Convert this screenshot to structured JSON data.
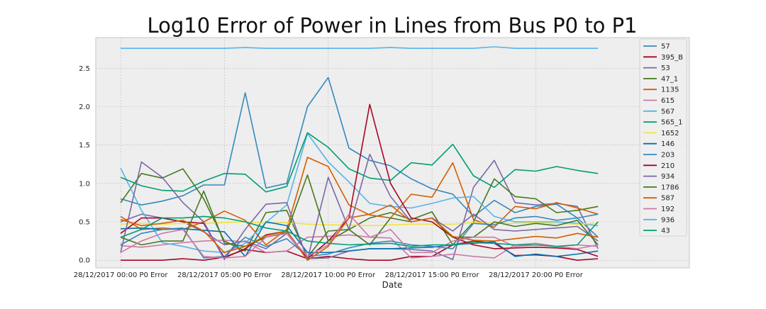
{
  "chart_data": {
    "type": "line",
    "title": "Log10 Error of Power in Lines from Bus P0 to P1",
    "xlabel": "Date",
    "ylabel": "",
    "ylim": [
      -0.1,
      2.9
    ],
    "yticks": [
      0.0,
      0.5,
      1.0,
      1.5,
      2.0,
      2.5
    ],
    "ytick_labels": [
      "0.0",
      "0.5",
      "1.0",
      "1.5",
      "2.0",
      "2.5"
    ],
    "xticks": [
      0,
      5,
      10,
      15,
      20
    ],
    "xtick_labels": [
      "28/12/2017 00:00 P0 Error",
      "28/12/2017 05:00 P0 Error",
      "28/12/2017 10:00 P0 Error",
      "28/12/2017 15:00 P0 Error",
      "28/12/2017 20:00 P0 Error"
    ],
    "x": [
      0,
      1,
      2,
      3,
      4,
      5,
      6,
      7,
      8,
      9,
      10,
      11,
      12,
      13,
      14,
      15,
      16,
      17,
      18,
      19,
      20,
      21,
      22,
      23
    ],
    "grid": true,
    "legend_position": "right",
    "background_color": "#eeeeee",
    "series": [
      {
        "name": "57",
        "color": "#348abd",
        "values": [
          0.8,
          0.72,
          0.77,
          0.84,
          0.98,
          0.98,
          2.18,
          0.94,
          1.0,
          2.0,
          2.38,
          1.46,
          1.3,
          1.23,
          1.06,
          0.93,
          0.86,
          0.57,
          0.78,
          0.62,
          0.7,
          0.73,
          0.55,
          0.3
        ]
      },
      {
        "name": "395_B",
        "color": "#a60628",
        "values": [
          0.0,
          0.0,
          0.0,
          0.02,
          0.0,
          0.04,
          0.14,
          0.1,
          0.12,
          0.02,
          0.05,
          0.02,
          0.0,
          0.0,
          0.05,
          0.05,
          0.2,
          0.25,
          0.22,
          0.06,
          0.07,
          0.05,
          0.0,
          0.02
        ]
      },
      {
        "name": "53",
        "color": "#7a68a6",
        "values": [
          0.5,
          0.6,
          0.55,
          0.5,
          0.37,
          0.2,
          0.25,
          0.15,
          0.35,
          0.02,
          0.03,
          0.12,
          0.15,
          0.15,
          0.14,
          0.12,
          0.01,
          0.95,
          1.3,
          0.75,
          0.72,
          0.74,
          0.7,
          0.15
        ]
      },
      {
        "name": "47_1",
        "color": "#467821",
        "values": [
          0.75,
          1.13,
          1.07,
          1.19,
          0.8,
          0.25,
          0.12,
          0.62,
          0.65,
          0.04,
          0.38,
          0.4,
          0.55,
          0.62,
          0.53,
          0.63,
          0.2,
          0.5,
          1.06,
          0.83,
          0.8,
          0.62,
          0.65,
          0.7
        ]
      },
      {
        "name": "1135",
        "color": "#d55e00",
        "values": [
          0.57,
          0.4,
          0.42,
          0.4,
          0.5,
          0.64,
          0.52,
          0.2,
          0.4,
          1.34,
          1.22,
          0.72,
          0.59,
          0.55,
          0.86,
          0.82,
          1.27,
          0.53,
          0.43,
          0.7,
          0.67,
          0.75,
          0.68,
          0.6
        ]
      },
      {
        "name": "615",
        "color": "#cc79a7",
        "values": [
          0.19,
          0.17,
          0.2,
          0.23,
          0.25,
          0.26,
          0.24,
          0.1,
          0.12,
          0.3,
          0.31,
          0.33,
          0.3,
          0.29,
          0.03,
          0.05,
          0.08,
          0.05,
          0.03,
          0.2,
          0.22,
          0.18,
          0.2,
          0.18
        ]
      },
      {
        "name": "567",
        "color": "#56b4e9",
        "values": [
          1.2,
          0.65,
          0.23,
          0.18,
          0.12,
          0.1,
          0.22,
          0.49,
          0.72,
          1.65,
          1.28,
          1.02,
          0.74,
          0.7,
          0.68,
          0.74,
          0.81,
          0.83,
          0.57,
          0.5,
          0.5,
          0.5,
          0.48,
          0.45
        ]
      },
      {
        "name": "565_1",
        "color": "#009e73",
        "values": [
          1.08,
          0.97,
          0.91,
          0.9,
          1.03,
          1.13,
          1.12,
          0.89,
          0.96,
          1.66,
          1.47,
          1.19,
          1.07,
          1.04,
          1.27,
          1.24,
          1.51,
          1.1,
          0.95,
          1.18,
          1.16,
          1.22,
          1.17,
          1.13
        ]
      },
      {
        "name": "1652",
        "color": "#f0e442",
        "values": [
          0.47,
          0.48,
          0.47,
          0.48,
          0.48,
          0.49,
          0.5,
          0.48,
          0.49,
          0.47,
          0.46,
          0.46,
          0.45,
          0.46,
          0.47,
          0.47,
          0.47,
          0.49,
          0.48,
          0.48,
          0.49,
          0.48,
          0.47,
          0.48
        ]
      },
      {
        "name": "146",
        "color": "#0072b2",
        "values": [
          0.41,
          0.42,
          0.4,
          0.41,
          0.39,
          0.37,
          0.05,
          0.5,
          0.45,
          0.1,
          0.1,
          0.12,
          0.15,
          0.15,
          0.16,
          0.17,
          0.2,
          0.22,
          0.24,
          0.05,
          0.08,
          0.05,
          0.08,
          0.12
        ]
      },
      {
        "name": "203",
        "color": "#348abd",
        "values": [
          0.2,
          0.35,
          0.4,
          0.42,
          0.03,
          0.05,
          0.3,
          0.18,
          0.28,
          0.05,
          0.08,
          0.16,
          0.22,
          0.25,
          0.2,
          0.18,
          0.15,
          0.48,
          0.46,
          0.55,
          0.57,
          0.52,
          0.55,
          0.6
        ]
      },
      {
        "name": "210",
        "color": "#a60628",
        "values": [
          0.35,
          0.55,
          0.55,
          0.5,
          0.48,
          0.03,
          0.15,
          0.33,
          0.38,
          0.02,
          0.25,
          0.55,
          2.03,
          1.0,
          0.55,
          0.5,
          0.3,
          0.2,
          0.15,
          0.16,
          0.17,
          0.16,
          0.14,
          0.05
        ]
      },
      {
        "name": "934",
        "color": "#7a68a6",
        "values": [
          0.1,
          1.28,
          1.08,
          0.75,
          0.5,
          0.01,
          0.4,
          0.73,
          0.75,
          0.01,
          1.08,
          0.4,
          1.38,
          0.83,
          0.5,
          0.55,
          0.38,
          0.6,
          0.4,
          0.38,
          0.4,
          0.42,
          0.44,
          0.25
        ]
      },
      {
        "name": "1786",
        "color": "#467821",
        "values": [
          0.3,
          0.2,
          0.25,
          0.25,
          0.9,
          0.22,
          0.18,
          0.3,
          0.36,
          1.11,
          0.25,
          0.4,
          0.2,
          0.55,
          0.5,
          0.55,
          0.3,
          0.3,
          0.5,
          0.44,
          0.48,
          0.45,
          0.52,
          0.2
        ]
      },
      {
        "name": "587",
        "color": "#d55e00",
        "values": [
          0.53,
          0.45,
          0.48,
          0.52,
          0.38,
          0.1,
          0.18,
          0.32,
          0.38,
          0.0,
          0.18,
          0.55,
          0.6,
          0.72,
          0.5,
          0.55,
          0.31,
          0.26,
          0.25,
          0.28,
          0.31,
          0.29,
          0.35,
          0.3
        ]
      },
      {
        "name": "192",
        "color": "#cc79a7",
        "values": [
          0.1,
          0.25,
          0.35,
          0.4,
          0.05,
          0.03,
          0.05,
          0.3,
          0.35,
          0.05,
          0.2,
          0.6,
          0.3,
          0.4,
          0.1,
          0.1,
          0.25,
          0.3,
          0.3,
          0.18,
          0.2,
          0.18,
          0.15,
          0.2
        ]
      },
      {
        "name": "936",
        "color": "#56b4e9",
        "values": [
          2.76,
          2.76,
          2.76,
          2.76,
          2.76,
          2.76,
          2.77,
          2.76,
          2.76,
          2.76,
          2.76,
          2.76,
          2.76,
          2.77,
          2.76,
          2.76,
          2.76,
          2.76,
          2.78,
          2.76,
          2.76,
          2.76,
          2.76,
          2.76
        ]
      },
      {
        "name": "43",
        "color": "#009e73",
        "values": [
          0.3,
          0.4,
          0.55,
          0.55,
          0.57,
          0.55,
          0.5,
          0.42,
          0.38,
          0.25,
          0.22,
          0.2,
          0.21,
          0.22,
          0.18,
          0.2,
          0.2,
          0.23,
          0.22,
          0.2,
          0.2,
          0.18,
          0.2,
          0.5
        ]
      }
    ]
  }
}
